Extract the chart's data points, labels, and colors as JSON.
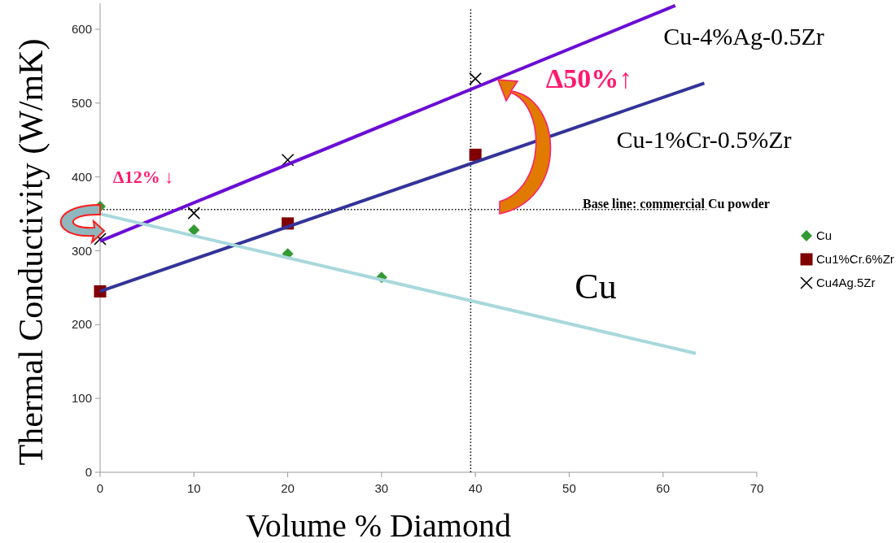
{
  "chart_data": {
    "type": "scatter",
    "xlabel": "Volume % Diamond",
    "ylabel": "Thermal Conductivity (W/mK)",
    "xlim": [
      0,
      70
    ],
    "xticks": [
      0,
      10,
      20,
      30,
      40,
      50,
      60,
      70
    ],
    "ylim": [
      0,
      635
    ],
    "yticks": [
      0,
      100,
      200,
      300,
      400,
      500,
      600
    ],
    "grid": false,
    "legend": "right",
    "series": [
      {
        "name": "Cu",
        "color": "#339933",
        "marker": "diamond",
        "x": [
          0,
          10,
          20,
          30
        ],
        "values": [
          360,
          328,
          296,
          264
        ]
      },
      {
        "name": "Cu1%Cr.6%Zr",
        "color": "#800000",
        "marker": "square",
        "x": [
          0,
          20,
          40
        ],
        "values": [
          245,
          337,
          430
        ]
      },
      {
        "name": "Cu4Ag.5Zr",
        "color": "#000000",
        "marker": "cross",
        "x": [
          0,
          10,
          20,
          40
        ],
        "values": [
          316,
          351,
          423,
          533
        ]
      },
      {
        "type": "line",
        "name": "Cu-4%Ag-0.5Zr",
        "color": "#6a0dd6",
        "marker": "none",
        "x": [
          0,
          61.3
        ],
        "values": [
          313,
          632
        ]
      },
      {
        "type": "line",
        "name": "Cu-1%Cr-0.5%Zr",
        "color": "#333399",
        "marker": "none",
        "x": [
          0,
          64.4
        ],
        "values": [
          245,
          527
        ]
      },
      {
        "type": "line",
        "name": "Cu",
        "color": "#a8d8dc",
        "marker": "none",
        "x": [
          0,
          63.5
        ],
        "values": [
          350,
          161
        ]
      }
    ],
    "ref_lines": [
      {
        "axis": "y",
        "value": 356,
        "label": "Base line: commercial Cu powder",
        "color": "#000000",
        "line_style": "dotted"
      },
      {
        "axis": "x",
        "value": 39.5,
        "color": "#000000",
        "line_style": "dotted"
      }
    ],
    "annotations": [
      "Δ12% ↓",
      "Δ50%↑"
    ]
  }
}
